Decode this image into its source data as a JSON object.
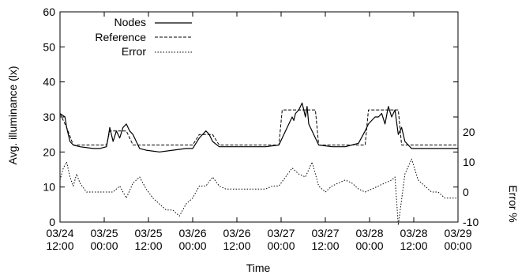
{
  "chart_data": {
    "type": "line",
    "xlabel": "Time",
    "ylabel": "Avg. illuminance (lx)",
    "y2label": "Error %",
    "x_tick_labels": [
      [
        "03/24",
        "12:00"
      ],
      [
        "03/25",
        "00:00"
      ],
      [
        "03/25",
        "12:00"
      ],
      [
        "03/26",
        "00:00"
      ],
      [
        "03/26",
        "12:00"
      ],
      [
        "03/27",
        "00:00"
      ],
      [
        "03/27",
        "12:00"
      ],
      [
        "03/28",
        "00:00"
      ],
      [
        "03/28",
        "12:00"
      ],
      [
        "03/29",
        "00:00"
      ]
    ],
    "x_range_hours": [
      0,
      120
    ],
    "ylim": [
      0,
      60
    ],
    "y_ticks": [
      0,
      10,
      20,
      30,
      40,
      50,
      60
    ],
    "y2lim": [
      -10,
      60
    ],
    "y2_ticks": [
      -10,
      0,
      10,
      20
    ],
    "legend": {
      "placement": "top-left",
      "entries": [
        "Nodes",
        "Reference",
        "Error"
      ]
    },
    "series": [
      {
        "name": "Nodes",
        "style": "solid",
        "axis": "left",
        "x": [
          0,
          1.5,
          2,
          3,
          4,
          6,
          10,
          12,
          14,
          14.5,
          15,
          16,
          17,
          18,
          19,
          20,
          21,
          22,
          24,
          26,
          30,
          34,
          38,
          40,
          42,
          44,
          45,
          46,
          48,
          50,
          54,
          58,
          62,
          66,
          68,
          69,
          70,
          70.5,
          71,
          72,
          73,
          74,
          74.5,
          75,
          76,
          77,
          78,
          82,
          84,
          86,
          88,
          90,
          92,
          93,
          94,
          95,
          96,
          97,
          98,
          99,
          100,
          101,
          102,
          103,
          104,
          105,
          106,
          107,
          108,
          112,
          116,
          120
        ],
        "y": [
          31,
          30,
          27,
          23,
          22,
          21.5,
          21,
          21,
          21.5,
          24,
          27,
          23,
          26,
          24,
          27,
          28,
          26,
          25,
          21,
          20.5,
          20,
          20.5,
          21,
          21,
          24,
          26,
          25,
          23,
          21.5,
          21.5,
          21.5,
          21.5,
          21.5,
          22,
          26,
          28,
          30,
          29,
          31,
          32,
          34,
          30,
          33,
          28,
          26,
          24,
          22,
          21.5,
          21.5,
          21.5,
          22,
          22.5,
          26,
          28,
          29,
          30,
          30,
          31,
          28,
          33,
          30,
          32,
          25,
          27,
          23,
          22,
          21,
          21,
          21,
          21,
          21,
          21
        ]
      },
      {
        "name": "Reference",
        "style": "dashed",
        "axis": "left",
        "x": [
          0,
          2,
          4,
          14,
          15,
          20,
          22,
          24,
          40,
          42,
          46,
          48,
          66,
          67,
          77,
          78,
          92,
          93,
          102,
          103,
          120
        ],
        "y": [
          31,
          27,
          22,
          22,
          26,
          26,
          22,
          22,
          22,
          25,
          25,
          22,
          22,
          32,
          32,
          22,
          22,
          32,
          32,
          22,
          22
        ]
      },
      {
        "name": "Error",
        "style": "dotted",
        "axis": "right",
        "x": [
          0,
          1,
          2,
          3,
          4,
          5,
          6,
          8,
          10,
          12,
          14,
          16,
          18,
          20,
          22,
          24,
          26,
          28,
          30,
          32,
          34,
          36,
          38,
          40,
          42,
          44,
          46,
          48,
          50,
          52,
          54,
          56,
          58,
          60,
          62,
          64,
          66,
          68,
          70,
          72,
          74,
          76,
          78,
          80,
          82,
          84,
          86,
          88,
          90,
          92,
          94,
          96,
          98,
          100,
          101,
          102,
          104,
          106,
          108,
          110,
          112,
          114,
          116,
          118,
          120
        ],
        "y": [
          4,
          8,
          10,
          5,
          2,
          6,
          3,
          0,
          0,
          0,
          0,
          0,
          2,
          -2,
          3,
          5,
          1,
          -2,
          -4,
          -6,
          -6,
          -8,
          -4,
          -2,
          2,
          2,
          5,
          2,
          1,
          1,
          1,
          1,
          1,
          1,
          1,
          2,
          2,
          5,
          8,
          6,
          5,
          10,
          2,
          0,
          2,
          3,
          4,
          3,
          1,
          0,
          1,
          2,
          3,
          4,
          5,
          -11,
          6,
          11,
          4,
          2,
          0,
          0,
          -2,
          -2,
          -2
        ]
      }
    ]
  }
}
